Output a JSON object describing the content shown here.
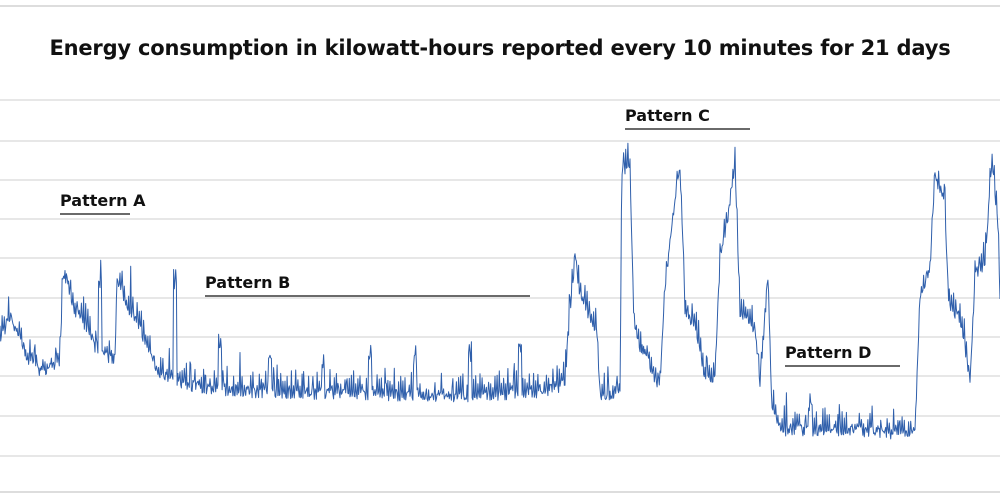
{
  "chart_data": {
    "type": "line",
    "title": "Energy consumption in kilowatt-hours reported every 10 minutes for 21 days",
    "xlabel": "",
    "ylabel": "",
    "grid": true,
    "line_color": "#2f5fab",
    "grid_color": "#cfcfcf",
    "annotations": [
      {
        "text": "Pattern A",
        "span": [
          0.06,
          0.13
        ]
      },
      {
        "text": "Pattern B",
        "span": [
          0.205,
          0.53
        ]
      },
      {
        "text": "Pattern C",
        "span": [
          0.625,
          0.75
        ]
      },
      {
        "text": "Pattern D",
        "span": [
          0.785,
          0.9
        ]
      }
    ],
    "profile": [
      [
        0,
        0.22
      ],
      [
        0.01,
        0.28
      ],
      [
        0.02,
        0.22
      ],
      [
        0.03,
        0.15
      ],
      [
        0.045,
        0.12
      ],
      [
        0.06,
        0.16
      ],
      [
        0.063,
        0.42
      ],
      [
        0.067,
        0.38
      ],
      [
        0.075,
        0.3
      ],
      [
        0.085,
        0.26
      ],
      [
        0.095,
        0.2
      ],
      [
        0.105,
        0.17
      ],
      [
        0.115,
        0.16
      ],
      [
        0.117,
        0.4
      ],
      [
        0.12,
        0.37
      ],
      [
        0.13,
        0.3
      ],
      [
        0.14,
        0.25
      ],
      [
        0.15,
        0.18
      ],
      [
        0.16,
        0.12
      ],
      [
        0.175,
        0.1
      ],
      [
        0.2,
        0.08
      ],
      [
        0.25,
        0.07
      ],
      [
        0.3,
        0.065
      ],
      [
        0.35,
        0.065
      ],
      [
        0.4,
        0.06
      ],
      [
        0.45,
        0.055
      ],
      [
        0.5,
        0.06
      ],
      [
        0.52,
        0.065
      ],
      [
        0.54,
        0.07
      ],
      [
        0.558,
        0.08
      ],
      [
        0.565,
        0.1
      ],
      [
        0.57,
        0.3
      ],
      [
        0.575,
        0.45
      ],
      [
        0.58,
        0.35
      ],
      [
        0.59,
        0.28
      ],
      [
        0.597,
        0.25
      ],
      [
        0.6,
        0.06
      ],
      [
        0.62,
        0.06
      ],
      [
        0.622,
        0.7
      ],
      [
        0.63,
        0.72
      ],
      [
        0.634,
        0.25
      ],
      [
        0.64,
        0.2
      ],
      [
        0.65,
        0.15
      ],
      [
        0.655,
        0.1
      ],
      [
        0.66,
        0.1
      ],
      [
        0.665,
        0.36
      ],
      [
        0.675,
        0.62
      ],
      [
        0.68,
        0.72
      ],
      [
        0.685,
        0.3
      ],
      [
        0.695,
        0.25
      ],
      [
        0.705,
        0.1
      ],
      [
        0.715,
        0.1
      ],
      [
        0.72,
        0.45
      ],
      [
        0.73,
        0.6
      ],
      [
        0.735,
        0.72
      ],
      [
        0.74,
        0.3
      ],
      [
        0.755,
        0.25
      ],
      [
        0.76,
        0.1
      ],
      [
        0.768,
        0.4
      ],
      [
        0.772,
        0.02
      ],
      [
        0.78,
        -0.04
      ],
      [
        0.8,
        -0.04
      ],
      [
        0.85,
        -0.04
      ],
      [
        0.9,
        -0.05
      ],
      [
        0.915,
        -0.05
      ],
      [
        0.92,
        0.35
      ],
      [
        0.93,
        0.42
      ],
      [
        0.935,
        0.68
      ],
      [
        0.945,
        0.62
      ],
      [
        0.948,
        0.32
      ],
      [
        0.96,
        0.28
      ],
      [
        0.965,
        0.2
      ],
      [
        0.97,
        0.1
      ],
      [
        0.975,
        0.4
      ],
      [
        0.985,
        0.44
      ],
      [
        0.992,
        0.73
      ],
      [
        0.998,
        0.55
      ],
      [
        1.0,
        0.33
      ]
    ],
    "spikes": [
      [
        0.1,
        0.38
      ],
      [
        0.175,
        0.38
      ],
      [
        0.22,
        0.18
      ],
      [
        0.27,
        0.16
      ],
      [
        0.323,
        0.15
      ],
      [
        0.37,
        0.16
      ],
      [
        0.415,
        0.16
      ],
      [
        0.47,
        0.17
      ],
      [
        0.52,
        0.19
      ],
      [
        0.81,
        0.03
      ]
    ]
  }
}
